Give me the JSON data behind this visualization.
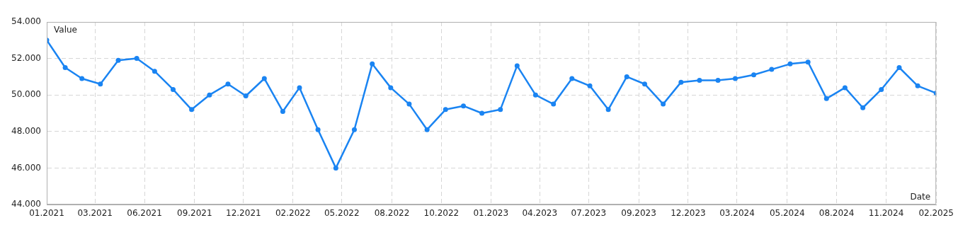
{
  "chart_data": {
    "type": "line",
    "xlabel": "Date",
    "ylabel": "Value",
    "x": [
      "2021-01",
      "2021-02",
      "2021-03",
      "2021-04",
      "2021-05",
      "2021-06",
      "2021-07",
      "2021-08",
      "2021-09",
      "2021-10",
      "2021-11",
      "2021-12",
      "2022-01",
      "2022-02",
      "2022-03",
      "2022-04",
      "2022-05",
      "2022-06",
      "2022-07",
      "2022-08",
      "2022-09",
      "2022-10",
      "2022-11",
      "2022-12",
      "2023-01",
      "2023-02",
      "2023-03",
      "2023-04",
      "2023-05",
      "2023-06",
      "2023-07",
      "2023-08",
      "2023-09",
      "2023-10",
      "2023-11",
      "2023-12",
      "2024-01",
      "2024-02",
      "2024-03",
      "2024-04",
      "2024-05",
      "2024-06",
      "2024-07",
      "2024-08",
      "2024-09",
      "2024-10",
      "2024-11",
      "2024-12",
      "2025-01",
      "2025-02"
    ],
    "series": [
      {
        "color": "#1a84f2",
        "values": [
          53.0,
          51.5,
          50.9,
          50.6,
          51.9,
          52.0,
          51.3,
          50.3,
          49.2,
          50.0,
          50.6,
          49.95,
          50.9,
          49.1,
          50.4,
          48.1,
          46.0,
          48.1,
          51.7,
          50.4,
          49.5,
          48.1,
          49.2,
          49.4,
          49.0,
          49.2,
          51.6,
          50.0,
          49.5,
          50.9,
          50.5,
          49.2,
          51.0,
          50.6,
          49.5,
          50.7,
          50.8,
          50.8,
          50.9,
          51.1,
          51.4,
          51.7,
          51.8,
          49.8,
          50.4,
          49.3,
          50.3,
          51.5,
          50.5,
          50.1
        ]
      }
    ],
    "xlim": [
      "2021-01",
      "2025-02"
    ],
    "xticks": [
      {
        "value": "2021-01-01",
        "label": "01.2021"
      },
      {
        "value": "2021-03-23",
        "label": "03.2021"
      },
      {
        "value": "2021-06-14",
        "label": "06.2021"
      },
      {
        "value": "2021-09-06",
        "label": "09.2021"
      },
      {
        "value": "2021-11-27",
        "label": "12.2021"
      },
      {
        "value": "2022-02-18",
        "label": "02.2022"
      },
      {
        "value": "2022-05-11",
        "label": "05.2022"
      },
      {
        "value": "2022-08-03",
        "label": "08.2022"
      },
      {
        "value": "2022-10-25",
        "label": "10.2022"
      },
      {
        "value": "2023-01-16",
        "label": "01.2023"
      },
      {
        "value": "2023-04-08",
        "label": "04.2023"
      },
      {
        "value": "2023-06-29",
        "label": "07.2023"
      },
      {
        "value": "2023-09-21",
        "label": "09.2023"
      },
      {
        "value": "2023-12-13",
        "label": "12.2023"
      },
      {
        "value": "2024-03-04",
        "label": "03.2024"
      },
      {
        "value": "2024-05-27",
        "label": "05.2024"
      },
      {
        "value": "2024-08-18",
        "label": "08.2024"
      },
      {
        "value": "2024-11-09",
        "label": "11.2024"
      },
      {
        "value": "2025-02-01",
        "label": "02.2025"
      }
    ],
    "ylim": [
      44,
      54
    ],
    "yticks": [
      {
        "value": 44,
        "label": "44.000"
      },
      {
        "value": 46,
        "label": "46.000"
      },
      {
        "value": 48,
        "label": "48.000"
      },
      {
        "value": 50,
        "label": "50.000"
      },
      {
        "value": 52,
        "label": "52.000"
      },
      {
        "value": 54,
        "label": "54.000"
      }
    ],
    "grid": true,
    "marker": "circle",
    "line_style": "solid",
    "legend": false
  }
}
